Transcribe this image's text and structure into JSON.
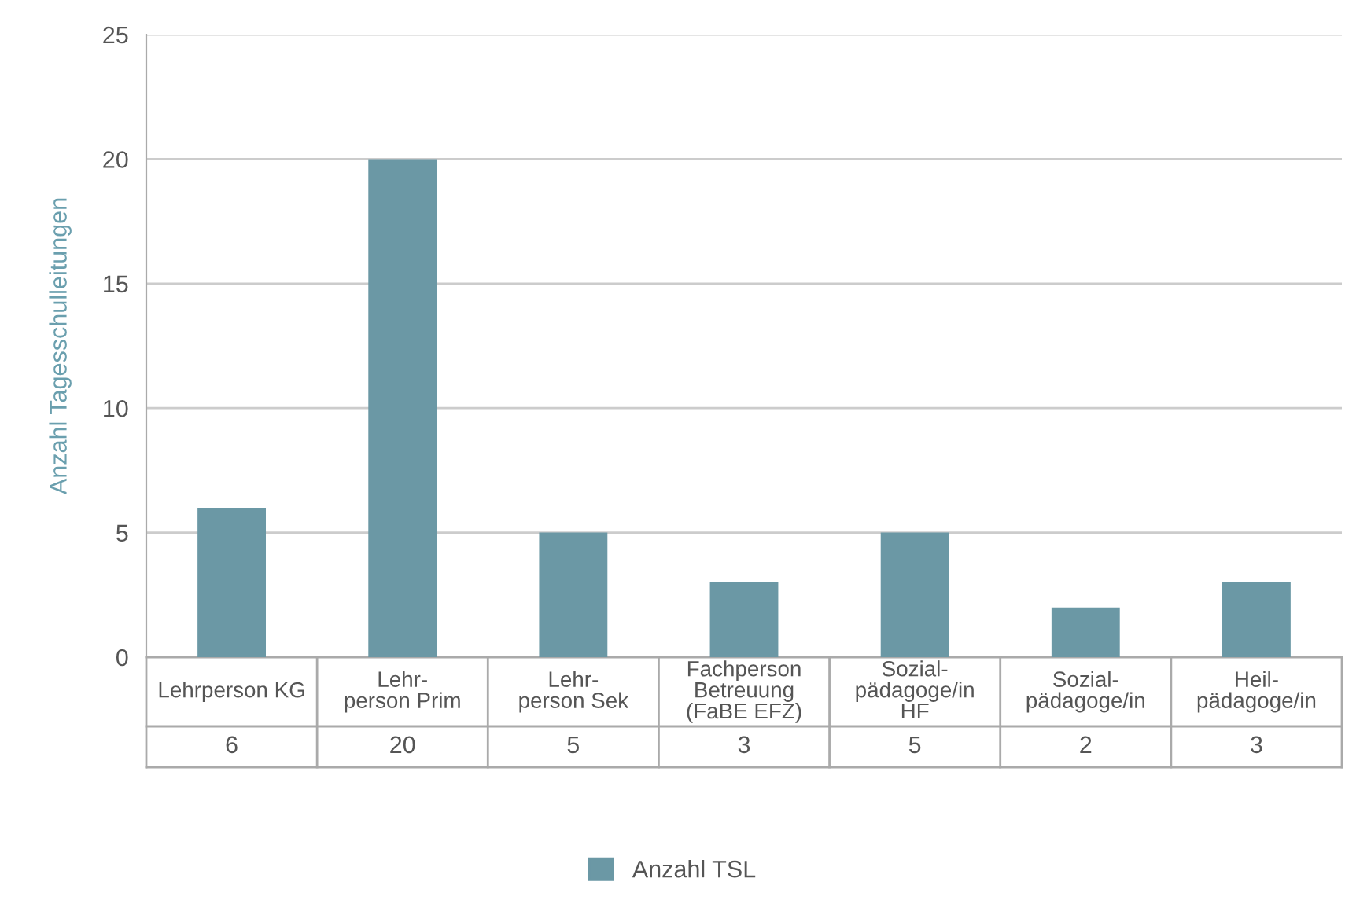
{
  "chart_data": {
    "type": "bar",
    "ylabel": "Anzahl Tagesschulleitungen",
    "categories": [
      "Lehrperson KG",
      "Lehr-\nperson Prim",
      "Lehr-\nperson Sek",
      "Fachperson\nBetreuung\n(FaBE EFZ)",
      "Sozial-\npädagoge/in\nHF",
      "Sozial-\npädagoge/in",
      "Heil-\npädagoge/in"
    ],
    "series": [
      {
        "name": "Anzahl TSL",
        "color": "#6b98a5",
        "values": [
          6,
          20,
          5,
          3,
          5,
          2,
          3
        ]
      }
    ],
    "ylim": [
      0,
      25
    ],
    "yticks": [
      0,
      5,
      10,
      15,
      20,
      25
    ],
    "grid": "y",
    "legend": "bottom",
    "data_labels": true
  }
}
